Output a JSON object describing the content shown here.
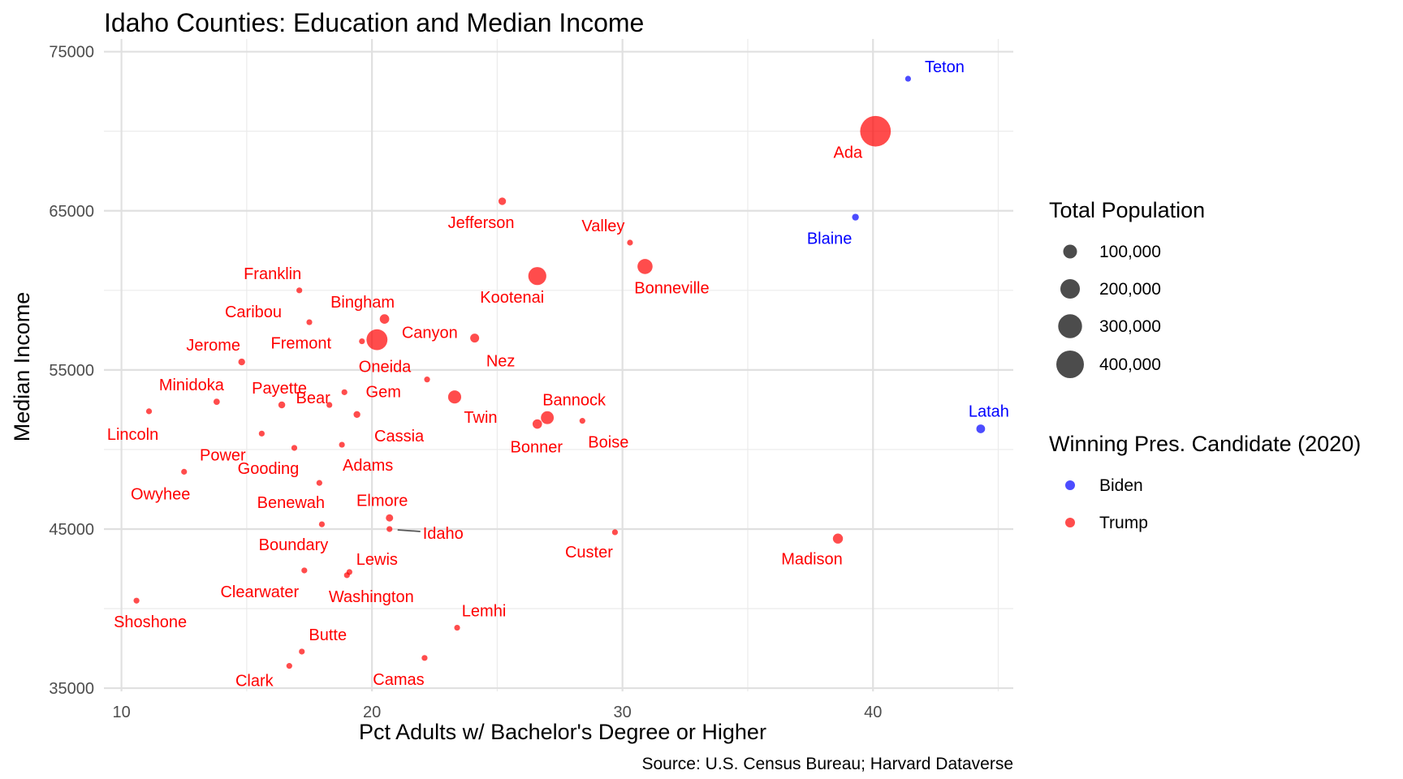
{
  "chart_data": {
    "type": "scatter",
    "title": "Idaho Counties: Education and Median Income",
    "xlabel": "Pct Adults w/ Bachelor's Degree or Higher",
    "ylabel": "Median Income",
    "caption": "Source: U.S. Census Bureau; Harvard Dataverse",
    "xlim": [
      9.3,
      45.6
    ],
    "ylim": [
      34800,
      75800
    ],
    "x_ticks": [
      10,
      20,
      30,
      40
    ],
    "x_tick_labels": [
      "10",
      "20",
      "30",
      "40"
    ],
    "y_ticks": [
      35000,
      45000,
      55000,
      65000,
      75000
    ],
    "y_tick_labels": [
      "35000",
      "45000",
      "55000",
      "65000",
      "75000"
    ],
    "grid": true,
    "legend_position": "right",
    "legends": {
      "size": {
        "title": "Total Population",
        "entries": [
          {
            "label": "100,000",
            "value": 100000
          },
          {
            "label": "200,000",
            "value": 200000
          },
          {
            "label": "300,000",
            "value": 300000
          },
          {
            "label": "400,000",
            "value": 400000
          }
        ]
      },
      "color": {
        "title": "Winning Pres. Candidate (2020)",
        "entries": [
          {
            "label": "Biden",
            "color": "#0000ff"
          },
          {
            "label": "Trump",
            "color": "#ff0000"
          }
        ]
      }
    },
    "points": [
      {
        "name": "Teton",
        "x": 41.4,
        "y": 73300,
        "pop": 12000,
        "winner": "Biden"
      },
      {
        "name": "Ada",
        "x": 40.1,
        "y": 70000,
        "pop": 494000,
        "winner": "Trump"
      },
      {
        "name": "Blaine",
        "x": 39.3,
        "y": 64600,
        "pop": 24000,
        "winner": "Biden"
      },
      {
        "name": "Latah",
        "x": 44.3,
        "y": 51300,
        "pop": 40000,
        "winner": "Biden"
      },
      {
        "name": "Madison",
        "x": 38.6,
        "y": 44400,
        "pop": 53000,
        "winner": "Trump"
      },
      {
        "name": "Jefferson",
        "x": 25.2,
        "y": 65600,
        "pop": 30000,
        "winner": "Trump"
      },
      {
        "name": "Valley",
        "x": 30.3,
        "y": 63000,
        "pop": 11000,
        "winner": "Trump"
      },
      {
        "name": "Kootenai",
        "x": 26.6,
        "y": 60900,
        "pop": 171000,
        "winner": "Trump"
      },
      {
        "name": "Bonneville",
        "x": 30.9,
        "y": 61500,
        "pop": 120000,
        "winner": "Trump"
      },
      {
        "name": "Franklin",
        "x": 17.1,
        "y": 60000,
        "pop": 14000,
        "winner": "Trump"
      },
      {
        "name": "Caribou",
        "x": 17.5,
        "y": 58000,
        "pop": 7000,
        "winner": "Trump"
      },
      {
        "name": "Bingham",
        "x": 20.5,
        "y": 58200,
        "pop": 47000,
        "winner": "Trump"
      },
      {
        "name": "Fremont",
        "x": 19.6,
        "y": 56800,
        "pop": 13000,
        "winner": "Trump"
      },
      {
        "name": "Canyon",
        "x": 20.2,
        "y": 56900,
        "pop": 231000,
        "winner": "Trump"
      },
      {
        "name": "Nez",
        "x": 24.1,
        "y": 57000,
        "pop": 42000,
        "winner": "Trump"
      },
      {
        "name": "Jerome",
        "x": 14.8,
        "y": 55500,
        "pop": 24000,
        "winner": "Trump"
      },
      {
        "name": "Oneida",
        "x": 22.2,
        "y": 54400,
        "pop": 4500,
        "winner": "Trump"
      },
      {
        "name": "Twin",
        "x": 23.3,
        "y": 53300,
        "pop": 90000,
        "winner": "Trump"
      },
      {
        "name": "Minidoka",
        "x": 13.8,
        "y": 53000,
        "pop": 21000,
        "winner": "Trump"
      },
      {
        "name": "Payette",
        "x": 16.4,
        "y": 52800,
        "pop": 25000,
        "winner": "Trump"
      },
      {
        "name": "Gem",
        "x": 18.9,
        "y": 53600,
        "pop": 18000,
        "winner": "Trump"
      },
      {
        "name": "Bear",
        "x": 18.3,
        "y": 52800,
        "pop": 6000,
        "winner": "Trump"
      },
      {
        "name": "Cassia",
        "x": 19.4,
        "y": 52200,
        "pop": 24000,
        "winner": "Trump"
      },
      {
        "name": "Bannock",
        "x": 27.0,
        "y": 52000,
        "pop": 87000,
        "winner": "Trump"
      },
      {
        "name": "Bonner",
        "x": 26.6,
        "y": 51600,
        "pop": 47000,
        "winner": "Trump"
      },
      {
        "name": "Boise",
        "x": 28.4,
        "y": 51800,
        "pop": 7500,
        "winner": "Trump"
      },
      {
        "name": "Lincoln",
        "x": 11.1,
        "y": 52400,
        "pop": 5000,
        "winner": "Trump"
      },
      {
        "name": "Power",
        "x": 15.6,
        "y": 51000,
        "pop": 8000,
        "winner": "Trump"
      },
      {
        "name": "Gooding",
        "x": 16.9,
        "y": 50100,
        "pop": 15000,
        "winner": "Trump"
      },
      {
        "name": "Adams",
        "x": 18.8,
        "y": 50300,
        "pop": 4500,
        "winner": "Trump"
      },
      {
        "name": "Owyhee",
        "x": 12.5,
        "y": 48600,
        "pop": 12000,
        "winner": "Trump"
      },
      {
        "name": "Benewah",
        "x": 17.9,
        "y": 47900,
        "pop": 9500,
        "winner": "Trump"
      },
      {
        "name": "Elmore",
        "x": 20.7,
        "y": 45700,
        "pop": 28000,
        "winner": "Trump"
      },
      {
        "name": "Idaho",
        "x": 20.7,
        "y": 45000,
        "pop": 16500,
        "winner": "Trump"
      },
      {
        "name": "Boundary",
        "x": 18.0,
        "y": 45300,
        "pop": 12000,
        "winner": "Trump"
      },
      {
        "name": "Custer",
        "x": 29.7,
        "y": 44800,
        "pop": 4500,
        "winner": "Trump"
      },
      {
        "name": "Lewis",
        "x": 19.1,
        "y": 42300,
        "pop": 3800,
        "winner": "Trump"
      },
      {
        "name": "Clearwater",
        "x": 17.3,
        "y": 42400,
        "pop": 9000,
        "winner": "Trump"
      },
      {
        "name": "Washington",
        "x": 19.0,
        "y": 42100,
        "pop": 10500,
        "winner": "Trump"
      },
      {
        "name": "Shoshone",
        "x": 10.6,
        "y": 40500,
        "pop": 13000,
        "winner": "Trump"
      },
      {
        "name": "Lemhi",
        "x": 23.4,
        "y": 38800,
        "pop": 8000,
        "winner": "Trump"
      },
      {
        "name": "Butte",
        "x": 17.2,
        "y": 37300,
        "pop": 2600,
        "winner": "Trump"
      },
      {
        "name": "Camas",
        "x": 22.1,
        "y": 36900,
        "pop": 1100,
        "winner": "Trump"
      },
      {
        "name": "Clark",
        "x": 16.7,
        "y": 36400,
        "pop": 800,
        "winner": "Trump"
      }
    ]
  }
}
